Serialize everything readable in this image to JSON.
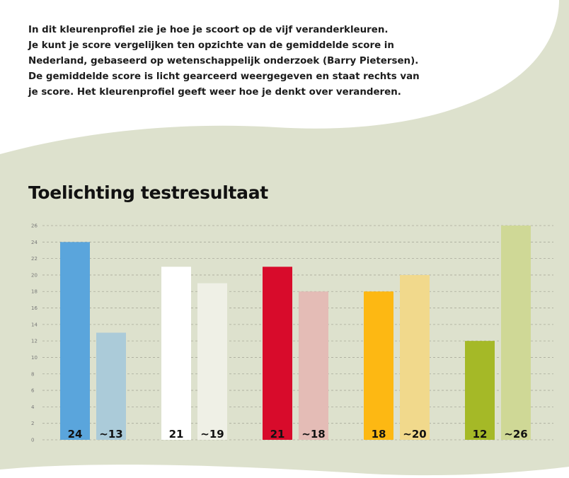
{
  "intro_lines": [
    "In dit kleurenprofiel zie je hoe je scoort op de vijf veranderkleuren.",
    "Je kunt je score vergelijken ten opzichte van de gemiddelde score in",
    "Nederland, gebaseerd op wetenschappelijk onderzoek (Barry Pietersen).",
    "De gemiddelde score is licht gearceerd weergegeven en staat rechts van",
    "je score. Het kleurenprofiel geeft weer hoe je denkt over veranderen."
  ],
  "heading": "Toelichting testresultaat",
  "colors": {
    "panel_background": "#dde1cd",
    "gridline": "#a9ab9c"
  },
  "chart_data": {
    "type": "bar",
    "ylim": [
      0,
      26
    ],
    "yticks": [
      0,
      2,
      4,
      6,
      8,
      10,
      12,
      14,
      16,
      18,
      20,
      22,
      24,
      26
    ],
    "grid": true,
    "groups": [
      {
        "score": 24,
        "score_label": "24",
        "average": 13,
        "average_label": "~13",
        "score_color": "#5aa5dc",
        "average_color": "#abcbd9"
      },
      {
        "score": 21,
        "score_label": "21",
        "average": 19,
        "average_label": "~19",
        "score_color": "#ffffff",
        "average_color": "#eff0e6"
      },
      {
        "score": 21,
        "score_label": "21",
        "average": 18,
        "average_label": "~18",
        "score_color": "#d80b2b",
        "average_color": "#e4bcb6"
      },
      {
        "score": 18,
        "score_label": "18",
        "average": 20,
        "average_label": "~20",
        "score_color": "#fdb813",
        "average_color": "#f1d98c"
      },
      {
        "score": 12,
        "score_label": "12",
        "average": 26,
        "average_label": "~26",
        "score_color": "#a5b927",
        "average_color": "#cfd896"
      }
    ]
  }
}
